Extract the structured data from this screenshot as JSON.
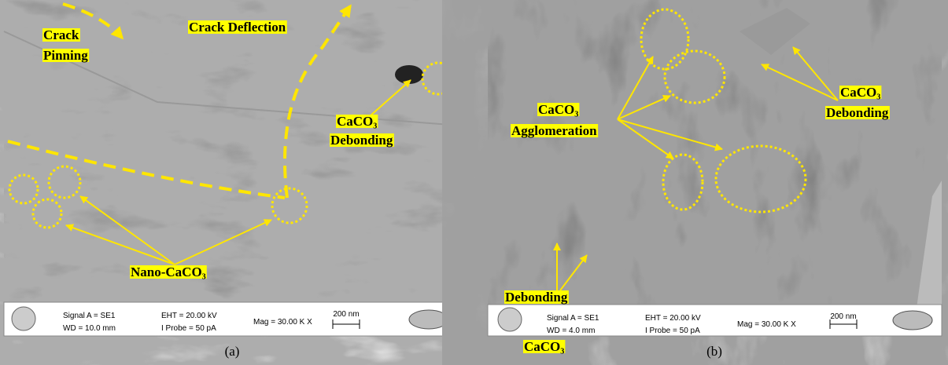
{
  "panels": [
    {
      "caption": "(a)",
      "labels": [
        [
          "Crack",
          "Pinning"
        ],
        [
          "Crack Deflection"
        ],
        [
          "CaCO₃",
          "Debonding"
        ],
        [
          "Nano-CaCO₃"
        ]
      ],
      "infobar": {
        "signal": "Signal A = SE1",
        "wd": "WD = 10.0 mm",
        "eht": "EHT = 20.00 kV",
        "probe": "I Probe =    50 pA",
        "mag": "Mag =  30.00 K X",
        "scale": "200 nm"
      }
    },
    {
      "caption": "(b)",
      "labels": [
        [
          "CaCO₃",
          "Agglomeration"
        ],
        [
          "CaCO₃",
          "Debonding"
        ],
        [
          "CaCO₃",
          "Debonding"
        ]
      ],
      "infobar": {
        "signal": "Signal A = SE1",
        "wd": "WD = 4.0 mm",
        "eht": "EHT = 20.00 kV",
        "probe": "I Probe =    50 pA",
        "mag": "Mag =  30.00 K X",
        "scale": "200 nm"
      }
    }
  ]
}
